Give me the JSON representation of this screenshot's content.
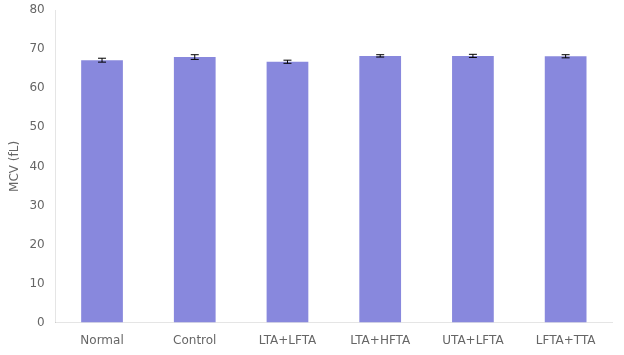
{
  "chart_data": {
    "type": "bar",
    "categories": [
      "Normal",
      "Control",
      "LTA+LFTA",
      "LTA+HFTA",
      "UTA+LFTA",
      "LFTA+TTA"
    ],
    "values": [
      67.2,
      68.0,
      66.8,
      68.3,
      68.3,
      68.2
    ],
    "errors": [
      0.5,
      0.6,
      0.4,
      0.3,
      0.4,
      0.4
    ],
    "color": "#8888dd",
    "ylabel": "MCV (fL)",
    "ylim": [
      0,
      80
    ],
    "yticks": [
      0,
      10,
      20,
      30,
      40,
      50,
      60,
      70,
      80
    ],
    "grid": false
  }
}
